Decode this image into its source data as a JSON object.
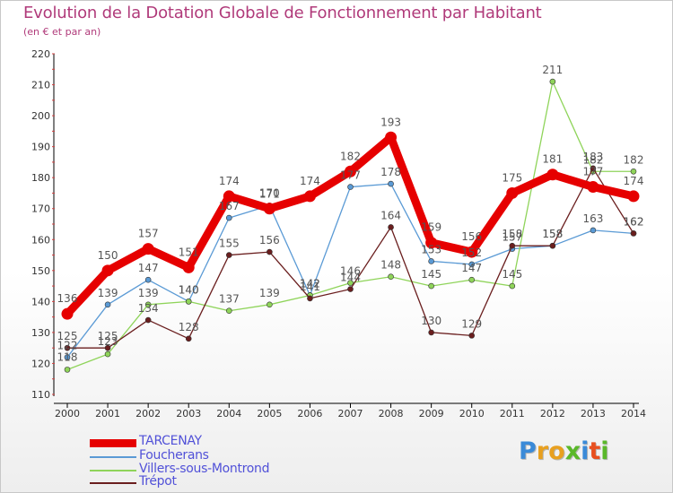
{
  "chart_data": {
    "type": "line",
    "title": "Evolution de la Dotation Globale de Fonctionnement par Habitant",
    "subtitle": "(en € et par an)",
    "xlabel": "",
    "ylabel": "",
    "ylim": [
      110,
      220
    ],
    "yticks": [
      110,
      120,
      130,
      140,
      150,
      160,
      170,
      180,
      190,
      200,
      210,
      220
    ],
    "categories": [
      "2000",
      "2001",
      "2002",
      "2003",
      "2004",
      "2005",
      "2006",
      "2007",
      "2008",
      "2009",
      "2010",
      "2011",
      "2012",
      "2013",
      "2014"
    ],
    "series": [
      {
        "name": "TARCENAY",
        "color": "#e60000",
        "values": [
          136,
          150,
          157,
          151,
          174,
          170,
          174,
          182,
          193,
          159,
          156,
          175,
          181,
          177,
          174
        ],
        "labels": [
          "136",
          "150",
          "157",
          "151",
          "174",
          "170",
          "174",
          "182",
          "193",
          "159",
          "156",
          "175",
          "181",
          "177",
          "174"
        ]
      },
      {
        "name": "Foucherans",
        "color": "#5a9ad5",
        "values": [
          122,
          139,
          147,
          140,
          167,
          171,
          142,
          177,
          178,
          153,
          152,
          157,
          158,
          163,
          162
        ],
        "labels": [
          "122",
          "139",
          "147",
          "140",
          "167",
          "171",
          "142",
          "177",
          "178",
          "153",
          "152",
          "157",
          "158",
          "163",
          "162"
        ]
      },
      {
        "name": "Villers-sous-Montrond",
        "color": "#8fd45a",
        "values": [
          118,
          123,
          139,
          140,
          137,
          139,
          142,
          146,
          148,
          145,
          147,
          145,
          211,
          182,
          182
        ],
        "labels": [
          "118",
          "123",
          "139",
          "140",
          "137",
          "139",
          "142",
          "146",
          "148",
          "145",
          "147",
          "145",
          "211",
          "182",
          "182"
        ]
      },
      {
        "name": "Trépot",
        "color": "#6a1e1e",
        "values": [
          125,
          125,
          134,
          128,
          155,
          156,
          141,
          144,
          164,
          130,
          129,
          158,
          158,
          183,
          162
        ],
        "labels": [
          "125",
          "125",
          "134",
          "128",
          "155",
          "156",
          "141",
          "144",
          "164",
          "130",
          "129",
          "158",
          "158",
          "183",
          "162"
        ]
      }
    ],
    "legend_position": "bottom-left",
    "grid": false
  },
  "logo": {
    "letters": [
      "P",
      "r",
      "o",
      "x",
      "i",
      "t",
      "i"
    ],
    "colors": [
      "#3a8ad8",
      "#e8a020",
      "#e8a020",
      "#5ab82a",
      "#3a8ad8",
      "#e85020",
      "#5ab82a"
    ]
  }
}
